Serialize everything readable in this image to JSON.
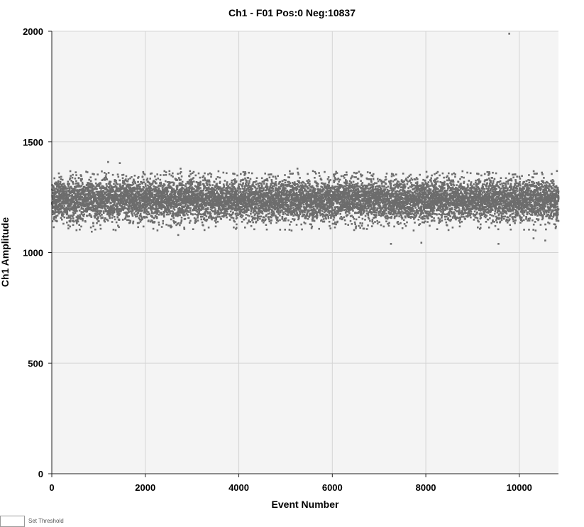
{
  "chart_data": {
    "type": "scatter",
    "title": "Ch1 - F01 Pos:0 Neg:10837",
    "xlabel": "Event Number",
    "ylabel": "Ch1 Amplitude",
    "xlim": [
      0,
      10837
    ],
    "ylim": [
      0,
      2000
    ],
    "xticks": [
      0,
      2000,
      4000,
      6000,
      8000,
      10000
    ],
    "yticks": [
      0,
      500,
      1000,
      1500,
      2000
    ],
    "grid": true,
    "point_color": "#6d6d6d",
    "background_color": "#f4f4f4",
    "series": [
      {
        "n_points": 10837,
        "center_amplitude": 1240,
        "typical_spread": [
          1150,
          1340
        ],
        "outliers": [
          {
            "x": 1200,
            "y": 1410
          },
          {
            "x": 1450,
            "y": 1405
          },
          {
            "x": 5250,
            "y": 1380
          },
          {
            "x": 2750,
            "y": 1380
          },
          {
            "x": 850,
            "y": 1095
          },
          {
            "x": 2700,
            "y": 1080
          },
          {
            "x": 7250,
            "y": 1040
          },
          {
            "x": 7900,
            "y": 1045
          },
          {
            "x": 9550,
            "y": 1040
          },
          {
            "x": 10300,
            "y": 1065
          },
          {
            "x": 10550,
            "y": 1055
          },
          {
            "x": 9780,
            "y": 1990
          }
        ]
      }
    ]
  },
  "footer": {
    "set_threshold_label": "Set Threshold"
  }
}
